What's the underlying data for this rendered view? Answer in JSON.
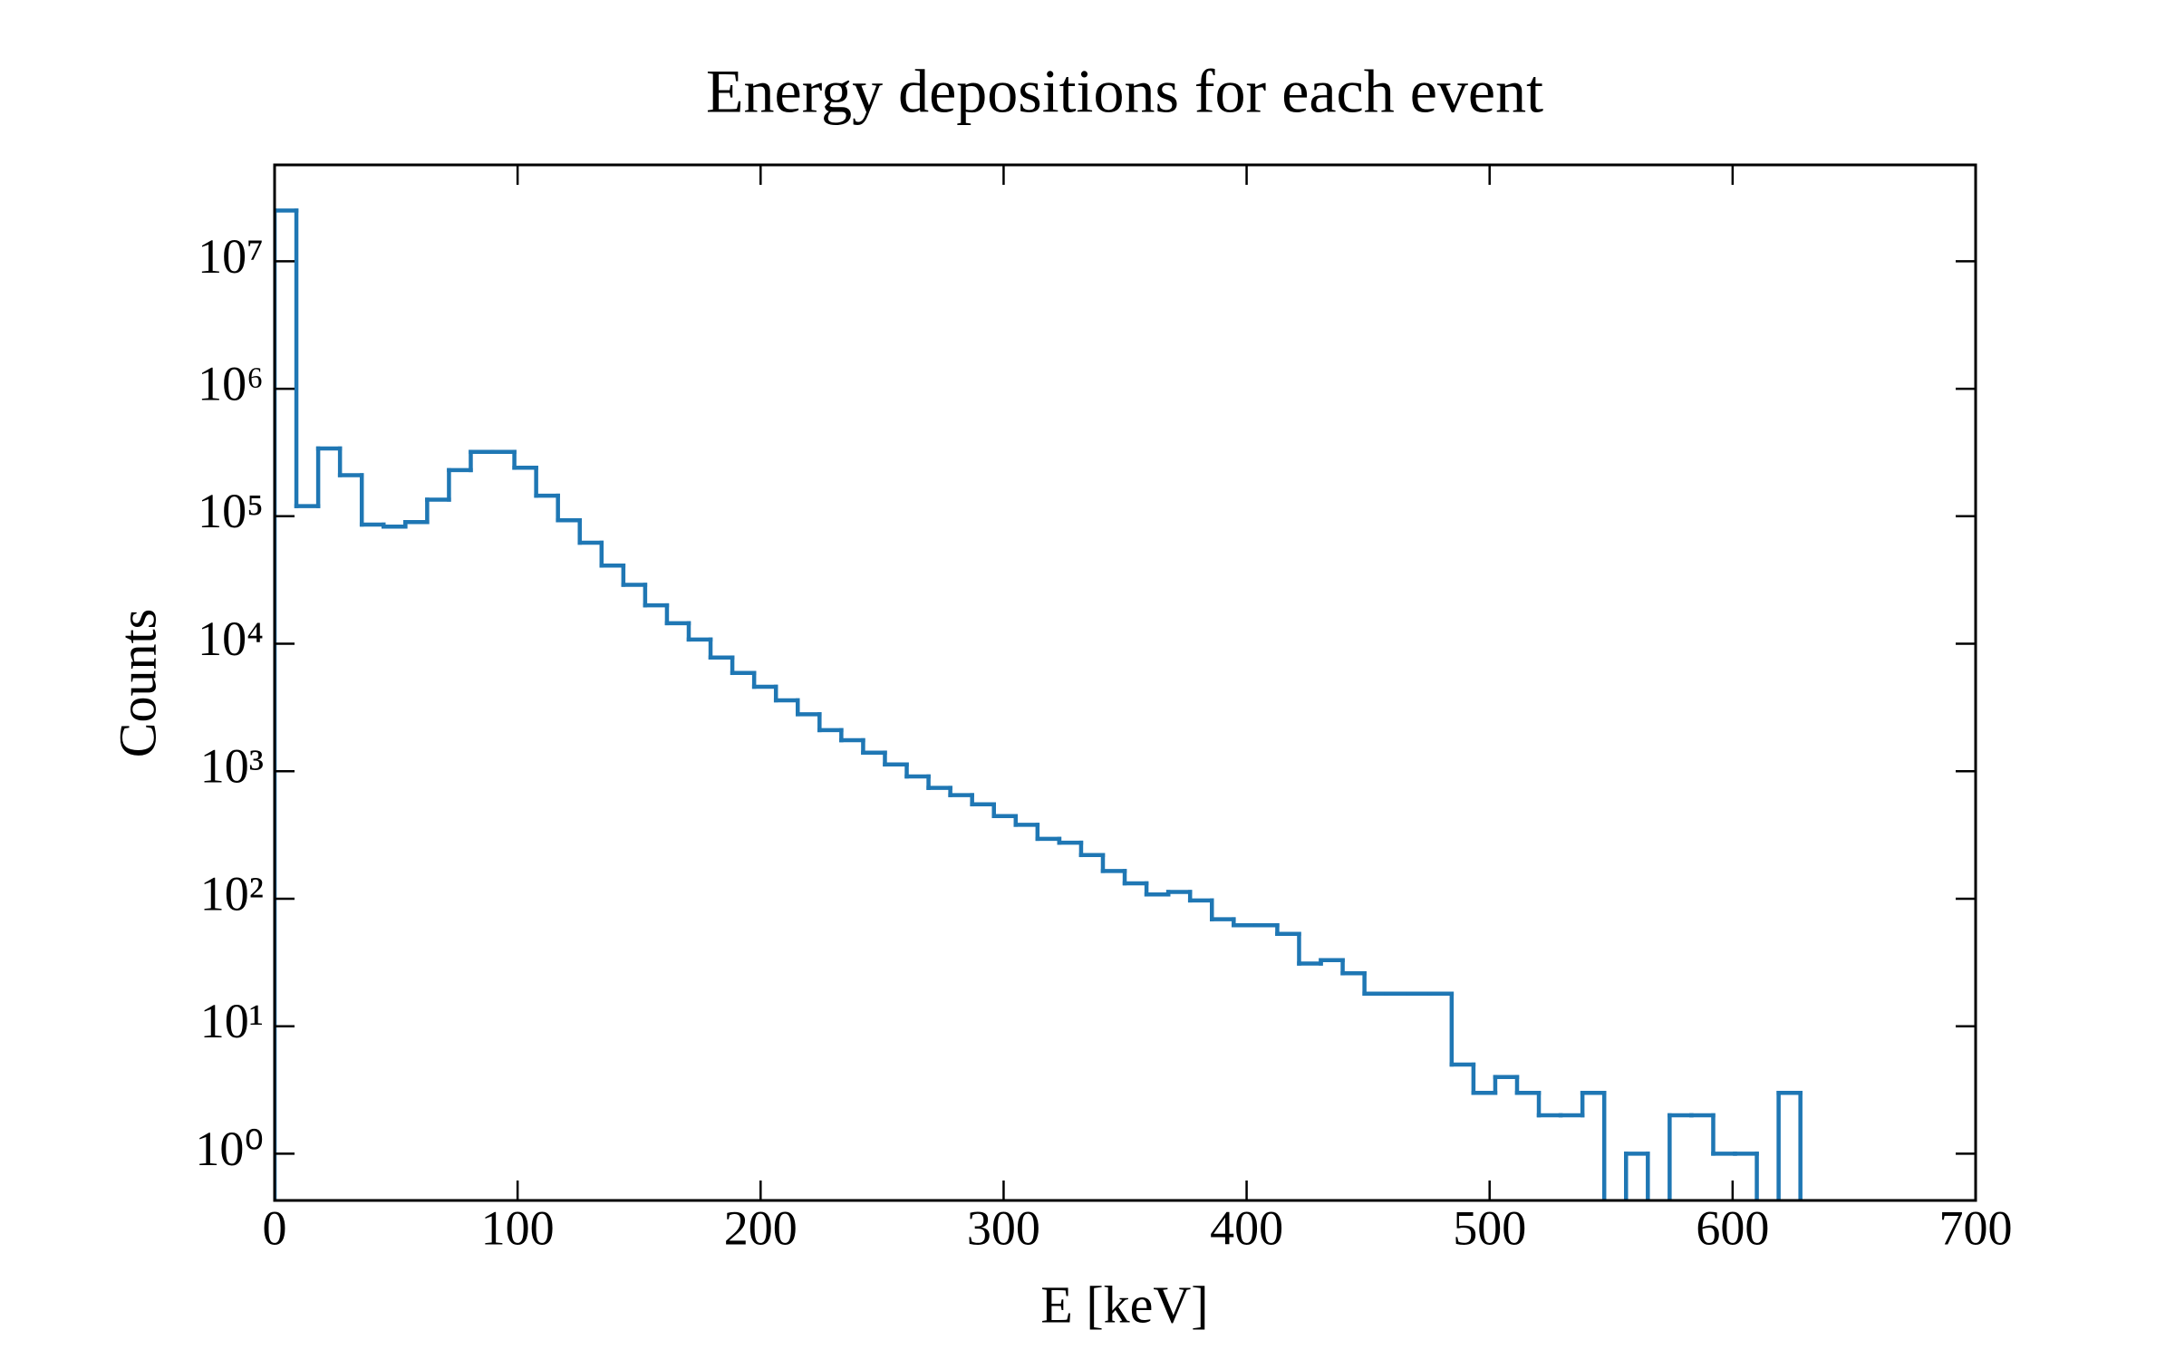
{
  "chart_data": {
    "type": "histogram",
    "title": "Energy depositions for each event",
    "x_label": "E [keV]",
    "y_label": "Counts",
    "bins": [
      0,
      8.97,
      17.94,
      26.91,
      35.88,
      44.85,
      53.82,
      62.79,
      71.76,
      80.73,
      89.7,
      98.67,
      107.64,
      116.61,
      125.58,
      134.55,
      143.52,
      152.49,
      161.46,
      170.43,
      179.4,
      188.37,
      197.34,
      206.31,
      215.28,
      224.25,
      233.22,
      242.19,
      251.16,
      260.13,
      269.1,
      278.07,
      287.04,
      296.01,
      304.98,
      313.95,
      322.92,
      331.89,
      340.86,
      349.83,
      358.8,
      367.77,
      376.74,
      385.71,
      394.68,
      403.65,
      412.62,
      421.59,
      430.56,
      439.53,
      448.5,
      457.47,
      466.44,
      475.41,
      484.38,
      493.35,
      502.32,
      511.29,
      520.26,
      529.23,
      538.2,
      547.17,
      556.14,
      565.11,
      574.08,
      583.05,
      592.02,
      600.99,
      609.96,
      618.93,
      627.9
    ],
    "values": [
      25000000,
      120000,
      340000,
      210000,
      86000,
      83000,
      90000,
      135000,
      230000,
      320000,
      320000,
      240000,
      145000,
      93000,
      62000,
      41000,
      29000,
      20000,
      14500,
      10800,
      7800,
      5900,
      4600,
      3600,
      2800,
      2100,
      1750,
      1400,
      1130,
      910,
      740,
      650,
      550,
      445,
      380,
      295,
      275,
      220,
      165,
      132,
      108,
      113,
      97,
      69,
      62,
      62,
      53,
      31,
      33,
      26,
      18,
      18,
      18,
      18,
      5,
      3,
      4,
      3,
      2,
      2,
      3,
      0,
      1,
      0,
      2,
      2,
      1,
      1,
      0,
      3
    ],
    "color": "#1f77b4",
    "log_y": true,
    "xlim": [
      0,
      700
    ],
    "xticks": [
      0,
      100,
      200,
      300,
      400,
      500,
      600,
      700
    ],
    "ylim": [
      0.43,
      57000000
    ],
    "yticks": [
      {
        "value": 1,
        "label": "10⁰"
      },
      {
        "value": 10,
        "label": "10¹"
      },
      {
        "value": 100,
        "label": "10²"
      },
      {
        "value": 1000,
        "label": "10³"
      },
      {
        "value": 10000,
        "label": "10⁴"
      },
      {
        "value": 100000,
        "label": "10⁵"
      },
      {
        "value": 1000000,
        "label": "10⁶"
      },
      {
        "value": 10000000,
        "label": "10⁷"
      }
    ]
  }
}
